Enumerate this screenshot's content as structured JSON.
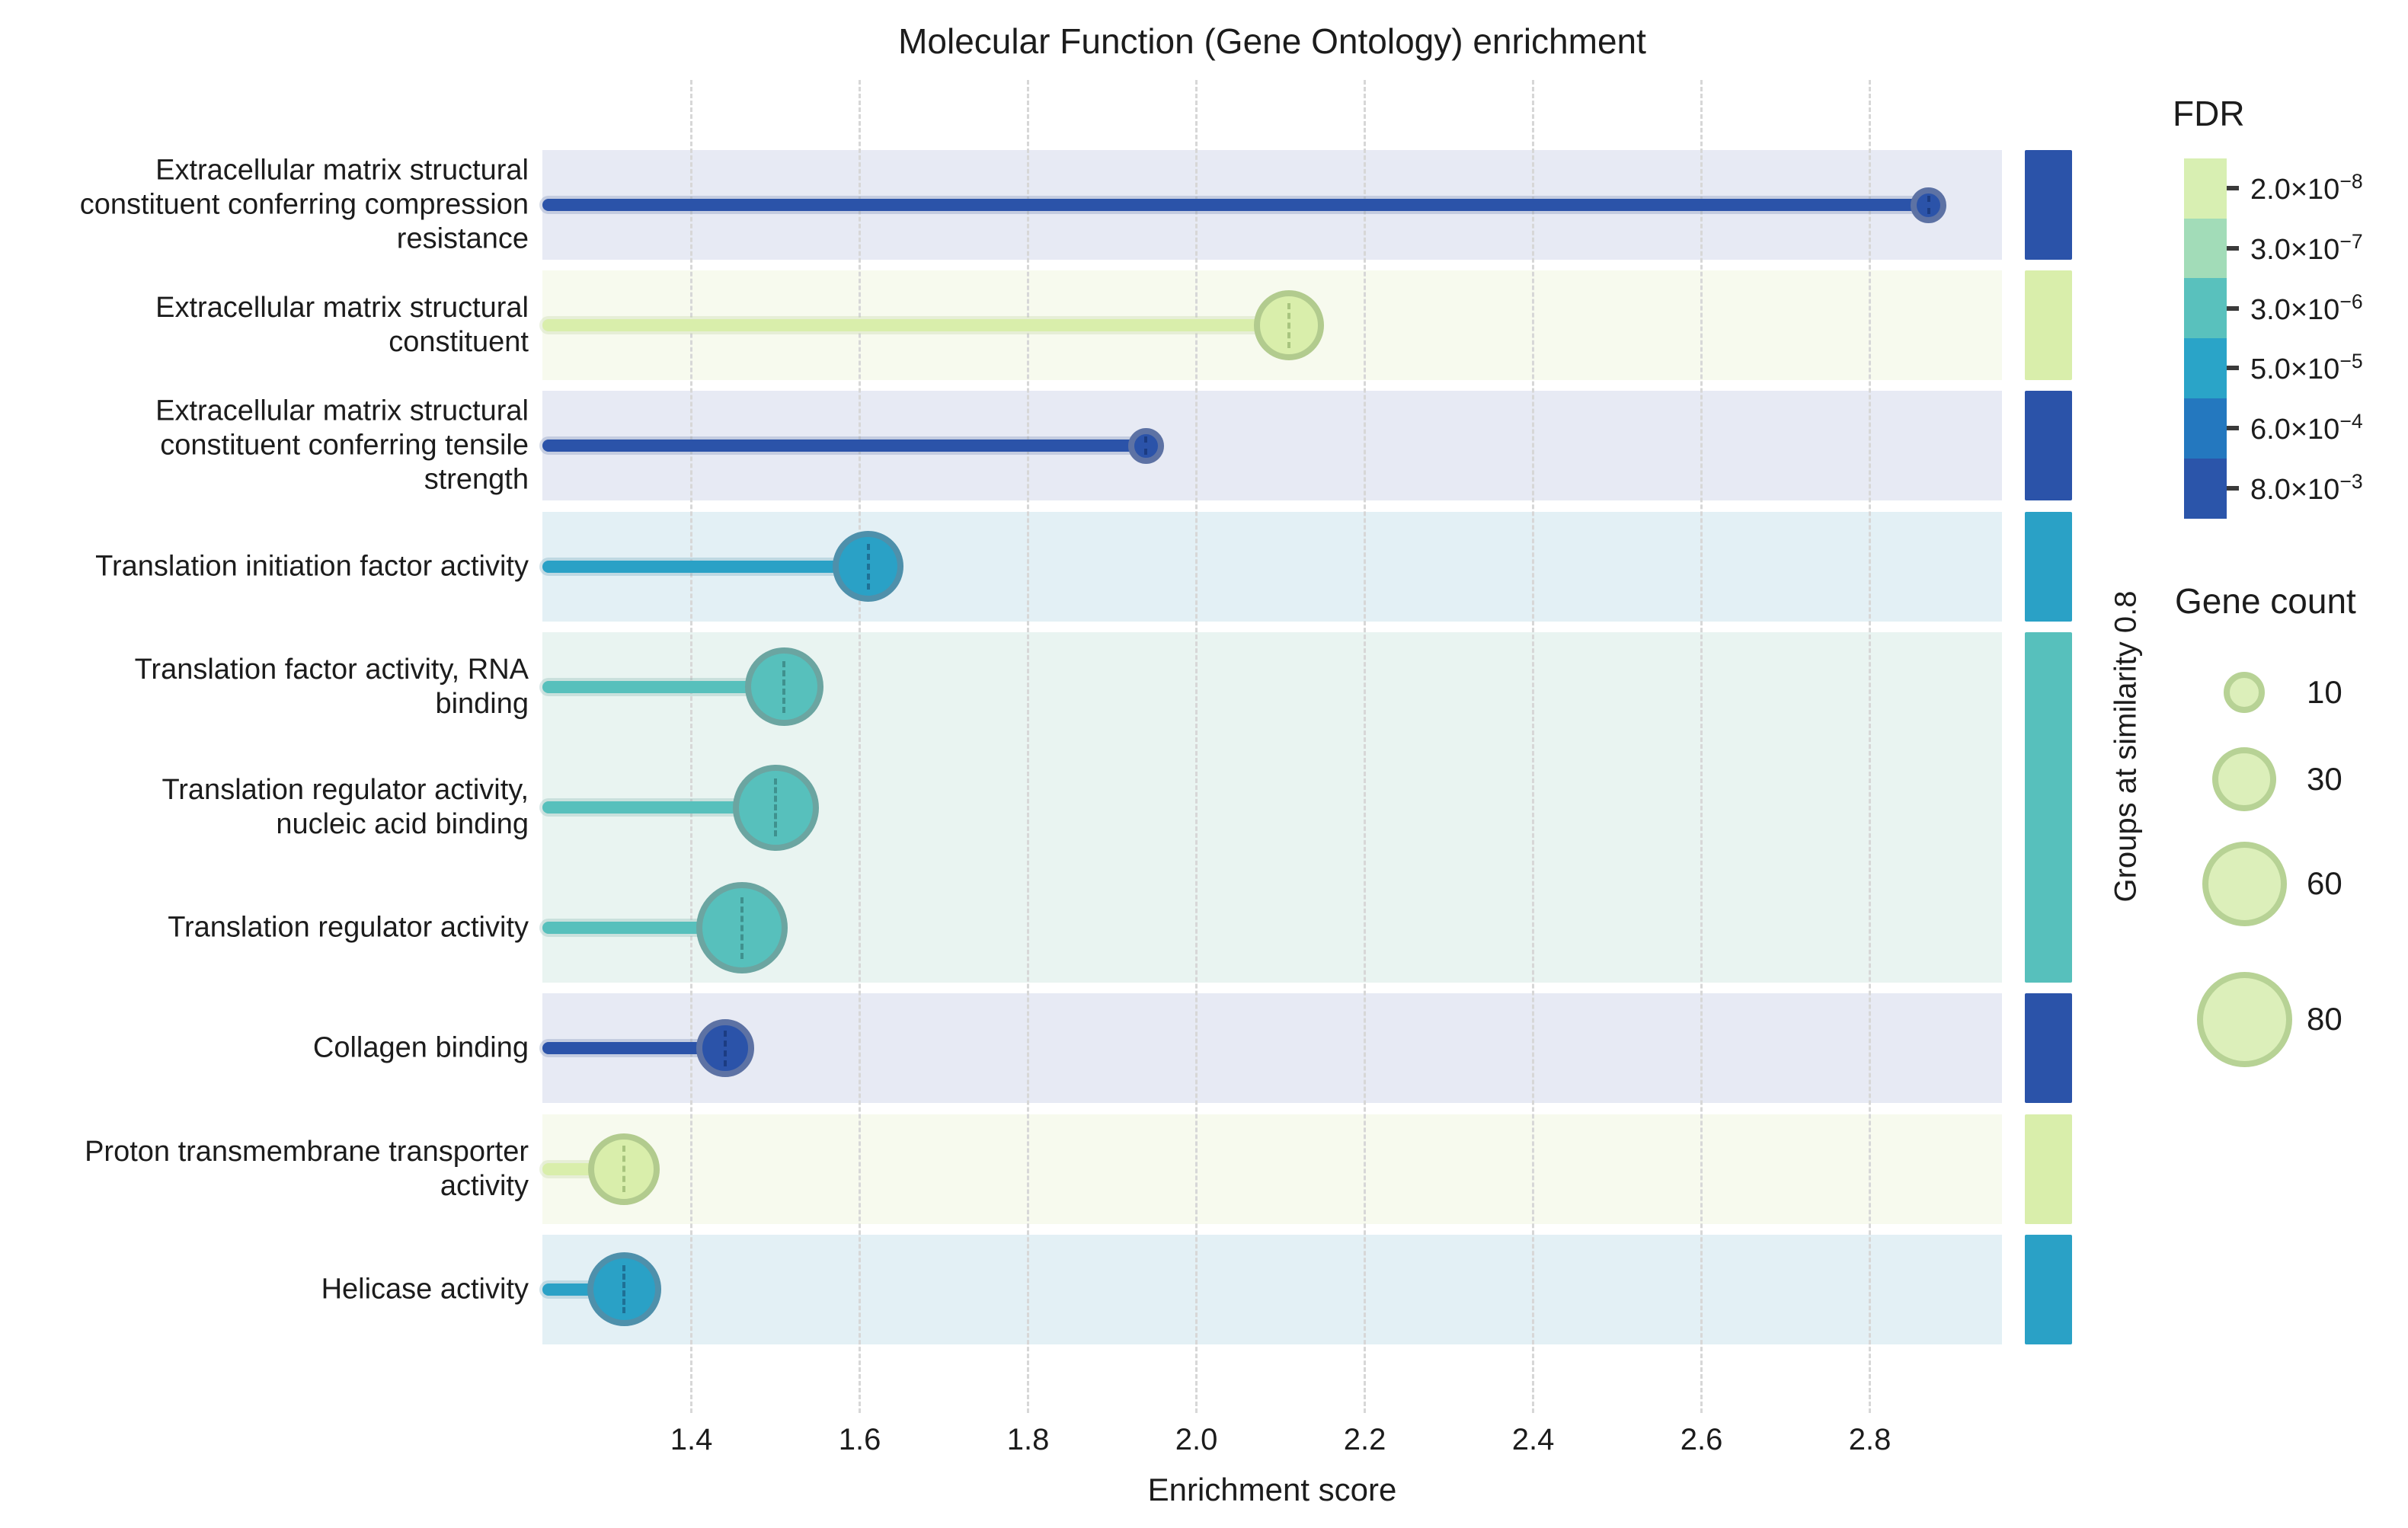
{
  "title": "Molecular Function (Gene Ontology) enrichment",
  "x_axis": {
    "label": "Enrichment score",
    "ticks": [
      "1.4",
      "1.6",
      "1.8",
      "2.0",
      "2.2",
      "2.4",
      "2.6",
      "2.8"
    ],
    "tick_values": [
      1.4,
      1.6,
      1.8,
      2.0,
      2.2,
      2.4,
      2.6,
      2.8
    ],
    "range": [
      1.223,
      2.957
    ]
  },
  "right_axis_label": "Groups at similarity 0.8",
  "colors": {
    "marker": {
      "darkblue": "#2b53a9",
      "blue": "#2aa1c6",
      "teal": "#57c0bc",
      "green": "#d9eeab"
    },
    "stroke": {
      "darkblue": "#5d72a4",
      "blue": "#4e90ab",
      "teal": "#6ba5a1",
      "green": "#b2cb8e"
    },
    "dash": {
      "darkblue": "#1c3c82",
      "blue": "#1f7095",
      "teal": "#3f918e",
      "green": "#a8c47e"
    },
    "stripe": {
      "darkblue": "#e7eaf4",
      "blue": "#e3f0f5",
      "teal": "#e9f4f1",
      "green": "#f7faee"
    },
    "gridline": "#d7d7d7",
    "text": "#1c1c1c",
    "legend_circle_fill": "#dcefba",
    "legend_circle_stroke": "#b7d295"
  },
  "chart_data": {
    "type": "lollipop",
    "title": "Molecular Function (Gene Ontology) enrichment",
    "xlabel": "Enrichment score",
    "x_range": [
      1.223,
      2.957
    ],
    "grid": true,
    "rows": [
      {
        "label": "Extracellular matrix structural constituent conferring compression resistance",
        "label_lines": [
          "Extracellular matrix structural",
          "constituent conferring compression",
          "resistance"
        ],
        "value": 2.87,
        "gene_count": 7,
        "color_key": "darkblue"
      },
      {
        "label": "Extracellular matrix structural constituent",
        "label_lines": [
          "Extracellular matrix structural",
          "constituent"
        ],
        "value": 2.11,
        "gene_count": 37,
        "color_key": "green"
      },
      {
        "label": "Extracellular matrix structural constituent conferring tensile strength",
        "label_lines": [
          "Extracellular matrix structural",
          "constituent conferring tensile",
          "strength"
        ],
        "value": 1.94,
        "gene_count": 7,
        "color_key": "darkblue"
      },
      {
        "label": "Translation initiation factor activity",
        "label_lines": [
          "Translation initiation factor activity"
        ],
        "value": 1.61,
        "gene_count": 38,
        "color_key": "blue"
      },
      {
        "label": "Translation factor activity, RNA binding",
        "label_lines": [
          "Translation factor activity, RNA",
          "binding"
        ],
        "value": 1.51,
        "gene_count": 50,
        "color_key": "teal"
      },
      {
        "label": "Translation regulator activity, nucleic acid binding",
        "label_lines": [
          "Translation regulator activity,",
          "nucleic acid binding"
        ],
        "value": 1.5,
        "gene_count": 62,
        "color_key": "teal"
      },
      {
        "label": "Translation regulator activity",
        "label_lines": [
          "Translation regulator activity"
        ],
        "value": 1.46,
        "gene_count": 72,
        "color_key": "teal"
      },
      {
        "label": "Collagen binding",
        "label_lines": [
          "Collagen binding"
        ],
        "value": 1.44,
        "gene_count": 23,
        "color_key": "darkblue"
      },
      {
        "label": "Proton transmembrane transporter activity",
        "label_lines": [
          "Proton transmembrane transporter",
          "activity"
        ],
        "value": 1.32,
        "gene_count": 39,
        "color_key": "green"
      },
      {
        "label": "Helicase activity",
        "label_lines": [
          "Helicase activity"
        ],
        "value": 1.32,
        "gene_count": 43,
        "color_key": "blue"
      }
    ],
    "groups": [
      {
        "rows": [
          0
        ],
        "color_key": "darkblue"
      },
      {
        "rows": [
          1
        ],
        "color_key": "green"
      },
      {
        "rows": [
          2
        ],
        "color_key": "darkblue"
      },
      {
        "rows": [
          3
        ],
        "color_key": "blue"
      },
      {
        "rows": [
          4,
          5,
          6
        ],
        "color_key": "teal"
      },
      {
        "rows": [
          7
        ],
        "color_key": "darkblue"
      },
      {
        "rows": [
          8
        ],
        "color_key": "green"
      },
      {
        "rows": [
          9
        ],
        "color_key": "blue"
      }
    ]
  },
  "legend_fdr": {
    "title": "FDR",
    "entries": [
      {
        "base": "2.0×10",
        "exp": "−8",
        "color": "#d8efb2"
      },
      {
        "base": "3.0×10",
        "exp": "−7",
        "color": "#a2dcb8"
      },
      {
        "base": "3.0×10",
        "exp": "−6",
        "color": "#59c1bd"
      },
      {
        "base": "5.0×10",
        "exp": "−5",
        "color": "#2aa4c8"
      },
      {
        "base": "6.0×10",
        "exp": "−4",
        "color": "#2478bf"
      },
      {
        "base": "8.0×10",
        "exp": "−3",
        "color": "#2b55aa"
      }
    ]
  },
  "legend_gene_count": {
    "title": "Gene count",
    "entries": [
      {
        "label": "10",
        "count": 10
      },
      {
        "label": "30",
        "count": 30
      },
      {
        "label": "60",
        "count": 60
      },
      {
        "label": "80",
        "count": 80
      }
    ]
  }
}
